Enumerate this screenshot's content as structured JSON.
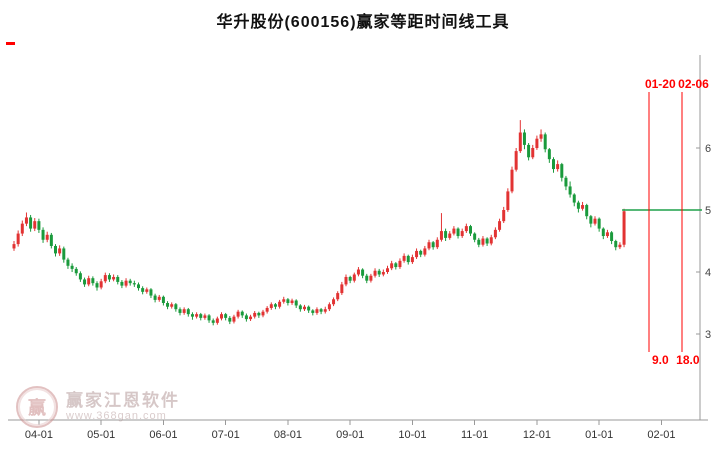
{
  "page": {
    "title": "华升股份(600156)赢家等距时间线工具"
  },
  "watermark": {
    "brand": "赢家江恩软件",
    "url": "www.368gan.com",
    "logo_char": "赢"
  },
  "chart_data": {
    "type": "candlestick",
    "title": "华升股份(600156)赢家等距时间线工具",
    "x_ticks": [
      "04-01",
      "05-01",
      "06-01",
      "07-01",
      "08-01",
      "09-01",
      "10-01",
      "11-01",
      "12-01",
      "01-01",
      "02-01"
    ],
    "x_tick_indices": [
      6,
      21,
      36,
      51,
      66,
      81,
      96,
      111,
      126,
      141,
      156
    ],
    "y_ticks": [
      3,
      4,
      5,
      6
    ],
    "ylim": [
      2.6,
      6.8
    ],
    "grid": false,
    "legend": "none",
    "candles": [
      [
        4.38,
        4.5,
        4.34,
        4.45
      ],
      [
        4.45,
        4.67,
        4.41,
        4.62
      ],
      [
        4.62,
        4.83,
        4.58,
        4.78
      ],
      [
        4.78,
        4.96,
        4.74,
        4.88
      ],
      [
        4.88,
        4.92,
        4.65,
        4.7
      ],
      [
        4.7,
        4.87,
        4.66,
        4.82
      ],
      [
        4.82,
        4.86,
        4.63,
        4.68
      ],
      [
        4.68,
        4.72,
        4.47,
        4.52
      ],
      [
        4.52,
        4.65,
        4.48,
        4.6
      ],
      [
        4.6,
        4.63,
        4.38,
        4.42
      ],
      [
        4.42,
        4.45,
        4.25,
        4.3
      ],
      [
        4.3,
        4.43,
        4.26,
        4.38
      ],
      [
        4.38,
        4.41,
        4.15,
        4.2
      ],
      [
        4.2,
        4.23,
        4.05,
        4.1
      ],
      [
        4.1,
        4.14,
        4.0,
        4.05
      ],
      [
        4.05,
        4.08,
        3.94,
        3.98
      ],
      [
        3.98,
        4.01,
        3.84,
        3.88
      ],
      [
        3.88,
        3.91,
        3.76,
        3.8
      ],
      [
        3.8,
        3.94,
        3.77,
        3.9
      ],
      [
        3.9,
        3.93,
        3.78,
        3.82
      ],
      [
        3.82,
        3.85,
        3.7,
        3.75
      ],
      [
        3.75,
        3.89,
        3.72,
        3.85
      ],
      [
        3.85,
        3.99,
        3.82,
        3.95
      ],
      [
        3.95,
        3.98,
        3.84,
        3.88
      ],
      [
        3.88,
        3.96,
        3.85,
        3.92
      ],
      [
        3.92,
        3.95,
        3.8,
        3.84
      ],
      [
        3.84,
        3.87,
        3.74,
        3.78
      ],
      [
        3.78,
        3.9,
        3.75,
        3.86
      ],
      [
        3.86,
        3.89,
        3.78,
        3.82
      ],
      [
        3.82,
        3.86,
        3.76,
        3.8
      ],
      [
        3.8,
        3.83,
        3.7,
        3.74
      ],
      [
        3.74,
        3.77,
        3.64,
        3.68
      ],
      [
        3.68,
        3.75,
        3.65,
        3.72
      ],
      [
        3.72,
        3.74,
        3.58,
        3.62
      ],
      [
        3.62,
        3.65,
        3.51,
        3.55
      ],
      [
        3.55,
        3.63,
        3.52,
        3.6
      ],
      [
        3.6,
        3.62,
        3.46,
        3.5
      ],
      [
        3.5,
        3.53,
        3.4,
        3.44
      ],
      [
        3.44,
        3.51,
        3.41,
        3.48
      ],
      [
        3.48,
        3.5,
        3.36,
        3.4
      ],
      [
        3.4,
        3.43,
        3.3,
        3.34
      ],
      [
        3.34,
        3.43,
        3.31,
        3.4
      ],
      [
        3.4,
        3.42,
        3.28,
        3.32
      ],
      [
        3.32,
        3.35,
        3.23,
        3.28
      ],
      [
        3.28,
        3.35,
        3.25,
        3.32
      ],
      [
        3.32,
        3.34,
        3.22,
        3.26
      ],
      [
        3.26,
        3.33,
        3.23,
        3.3
      ],
      [
        3.3,
        3.32,
        3.18,
        3.22
      ],
      [
        3.22,
        3.25,
        3.14,
        3.18
      ],
      [
        3.18,
        3.28,
        3.15,
        3.25
      ],
      [
        3.25,
        3.35,
        3.22,
        3.32
      ],
      [
        3.32,
        3.34,
        3.22,
        3.26
      ],
      [
        3.26,
        3.29,
        3.16,
        3.2
      ],
      [
        3.2,
        3.31,
        3.17,
        3.28
      ],
      [
        3.28,
        3.39,
        3.25,
        3.36
      ],
      [
        3.36,
        3.38,
        3.26,
        3.3
      ],
      [
        3.3,
        3.33,
        3.2,
        3.24
      ],
      [
        3.24,
        3.31,
        3.21,
        3.28
      ],
      [
        3.28,
        3.37,
        3.25,
        3.34
      ],
      [
        3.34,
        3.36,
        3.26,
        3.3
      ],
      [
        3.3,
        3.39,
        3.27,
        3.36
      ],
      [
        3.36,
        3.45,
        3.33,
        3.42
      ],
      [
        3.42,
        3.51,
        3.39,
        3.48
      ],
      [
        3.48,
        3.5,
        3.4,
        3.44
      ],
      [
        3.44,
        3.55,
        3.41,
        3.52
      ],
      [
        3.52,
        3.6,
        3.49,
        3.56
      ],
      [
        3.56,
        3.58,
        3.46,
        3.5
      ],
      [
        3.5,
        3.57,
        3.47,
        3.54
      ],
      [
        3.54,
        3.56,
        3.42,
        3.46
      ],
      [
        3.46,
        3.48,
        3.36,
        3.4
      ],
      [
        3.4,
        3.47,
        3.37,
        3.44
      ],
      [
        3.44,
        3.46,
        3.34,
        3.38
      ],
      [
        3.38,
        3.4,
        3.3,
        3.34
      ],
      [
        3.34,
        3.43,
        3.31,
        3.4
      ],
      [
        3.4,
        3.42,
        3.32,
        3.36
      ],
      [
        3.36,
        3.44,
        3.33,
        3.4
      ],
      [
        3.4,
        3.51,
        3.37,
        3.48
      ],
      [
        3.48,
        3.59,
        3.45,
        3.56
      ],
      [
        3.56,
        3.69,
        3.53,
        3.66
      ],
      [
        3.66,
        3.84,
        3.63,
        3.8
      ],
      [
        3.8,
        3.96,
        3.77,
        3.92
      ],
      [
        3.92,
        3.94,
        3.82,
        3.86
      ],
      [
        3.86,
        3.99,
        3.83,
        3.96
      ],
      [
        3.96,
        4.08,
        3.93,
        4.04
      ],
      [
        4.04,
        4.06,
        3.9,
        3.94
      ],
      [
        3.94,
        3.97,
        3.82,
        3.86
      ],
      [
        3.86,
        3.97,
        3.83,
        3.94
      ],
      [
        3.94,
        4.06,
        3.91,
        4.02
      ],
      [
        4.02,
        4.05,
        3.92,
        3.96
      ],
      [
        3.96,
        4.04,
        3.93,
        4.0
      ],
      [
        4.0,
        4.1,
        3.97,
        4.06
      ],
      [
        4.06,
        4.18,
        4.03,
        4.14
      ],
      [
        4.14,
        4.16,
        4.04,
        4.08
      ],
      [
        4.08,
        4.22,
        4.05,
        4.18
      ],
      [
        4.18,
        4.3,
        4.15,
        4.26
      ],
      [
        4.26,
        4.28,
        4.12,
        4.16
      ],
      [
        4.16,
        4.28,
        4.13,
        4.24
      ],
      [
        4.24,
        4.38,
        4.21,
        4.34
      ],
      [
        4.34,
        4.36,
        4.24,
        4.28
      ],
      [
        4.28,
        4.42,
        4.25,
        4.38
      ],
      [
        4.38,
        4.52,
        4.35,
        4.48
      ],
      [
        4.48,
        4.5,
        4.36,
        4.4
      ],
      [
        4.4,
        4.56,
        4.37,
        4.52
      ],
      [
        4.52,
        4.95,
        4.49,
        4.66
      ],
      [
        4.66,
        4.7,
        4.5,
        4.55
      ],
      [
        4.55,
        4.66,
        4.52,
        4.62
      ],
      [
        4.62,
        4.74,
        4.59,
        4.7
      ],
      [
        4.7,
        4.72,
        4.54,
        4.58
      ],
      [
        4.58,
        4.7,
        4.55,
        4.66
      ],
      [
        4.66,
        4.78,
        4.63,
        4.74
      ],
      [
        4.74,
        4.76,
        4.58,
        4.62
      ],
      [
        4.62,
        4.64,
        4.48,
        4.52
      ],
      [
        4.52,
        4.55,
        4.4,
        4.44
      ],
      [
        4.44,
        4.58,
        4.41,
        4.54
      ],
      [
        4.54,
        4.56,
        4.42,
        4.46
      ],
      [
        4.46,
        4.6,
        4.43,
        4.56
      ],
      [
        4.56,
        4.72,
        4.53,
        4.68
      ],
      [
        4.68,
        4.86,
        4.65,
        4.82
      ],
      [
        4.82,
        5.05,
        4.79,
        5.0
      ],
      [
        5.0,
        5.35,
        4.97,
        5.3
      ],
      [
        5.3,
        5.7,
        5.27,
        5.65
      ],
      [
        5.65,
        6.0,
        5.62,
        5.95
      ],
      [
        5.95,
        6.45,
        5.92,
        6.25
      ],
      [
        6.25,
        6.3,
        5.98,
        6.05
      ],
      [
        6.05,
        6.08,
        5.8,
        5.85
      ],
      [
        5.85,
        6.05,
        5.82,
        6.0
      ],
      [
        6.0,
        6.2,
        5.97,
        6.15
      ],
      [
        6.15,
        6.3,
        6.1,
        6.22
      ],
      [
        6.22,
        6.25,
        5.93,
        5.98
      ],
      [
        5.98,
        6.0,
        5.76,
        5.82
      ],
      [
        5.82,
        5.85,
        5.6,
        5.66
      ],
      [
        5.66,
        5.8,
        5.62,
        5.74
      ],
      [
        5.74,
        5.76,
        5.46,
        5.52
      ],
      [
        5.52,
        5.55,
        5.32,
        5.38
      ],
      [
        5.38,
        5.46,
        5.2,
        5.25
      ],
      [
        5.25,
        5.27,
        5.06,
        5.12
      ],
      [
        5.12,
        5.15,
        4.96,
        5.02
      ],
      [
        5.02,
        5.13,
        4.99,
        5.08
      ],
      [
        5.08,
        5.1,
        4.85,
        4.9
      ],
      [
        4.9,
        4.92,
        4.72,
        4.78
      ],
      [
        4.78,
        4.9,
        4.75,
        4.86
      ],
      [
        4.86,
        4.88,
        4.65,
        4.7
      ],
      [
        4.7,
        4.72,
        4.53,
        4.58
      ],
      [
        4.58,
        4.68,
        4.55,
        4.64
      ],
      [
        4.64,
        4.66,
        4.45,
        4.5
      ],
      [
        4.5,
        4.52,
        4.35,
        4.4
      ],
      [
        4.4,
        4.48,
        4.37,
        4.44
      ],
      [
        4.44,
        5.02,
        4.4,
        4.98
      ]
    ],
    "annotations": {
      "timeline_lines": [
        {
          "date_label": "01-20",
          "days_label": "9.0",
          "index": 153
        },
        {
          "date_label": "02-06",
          "days_label": "18.0",
          "index": 161
        }
      ],
      "price_line": {
        "value": 5.0
      }
    },
    "colors": {
      "up": "#e23333",
      "down": "#1a9a3c",
      "annotation": "#ff0000",
      "price_line": "#1fa04a",
      "axis": "#999999",
      "tick_text": "#444444"
    }
  }
}
